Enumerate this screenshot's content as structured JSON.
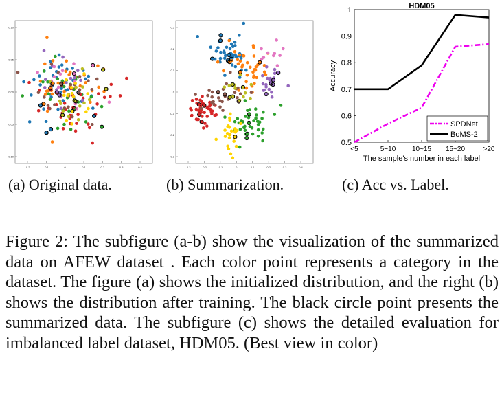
{
  "figure": {
    "panels": [
      {
        "caption": "(a) Original data.",
        "x_ticks": [
          "-0.2",
          "-0.1",
          "0",
          "0.1",
          "0.2",
          "0.3",
          "0.4"
        ],
        "y_ticks": [
          "0.10",
          "0.05",
          "0.00",
          "-0.05",
          "-0.10"
        ]
      },
      {
        "caption": "(b) Summarization.",
        "x_ticks": [
          "-0.3",
          "-0.2",
          "-0.1",
          "0",
          "0.1",
          "0.2",
          "0.3",
          "0.4"
        ],
        "y_ticks": [
          "0.3",
          "0.2",
          "0.1",
          "0",
          "-0.1",
          "-0.2",
          "-0.3"
        ]
      },
      {
        "caption": "(c) Acc vs. Label."
      }
    ],
    "category_colors": [
      "#1f77b4",
      "#ff7f0e",
      "#2ca02c",
      "#d62728",
      "#9467bd",
      "#8c564b",
      "#e377c2",
      "#bcbd22",
      "#ffd400"
    ],
    "caption_text": "Figure 2: The subfigure (a-b) show the visualization of the summarized data on AFEW dataset . Each color point represents a category in the dataset. The figure (a) shows the initialized distribution, and the right (b) shows the distribution after training. The black circle point presents the summarized data. The subfigure (c) shows the detailed evaluation for imbalanced label dataset, HDM05. (Best view in color)"
  },
  "chart_data": {
    "type": "line",
    "title": "HDM05",
    "xlabel": "The sample's number in each label",
    "ylabel": "Accuracy",
    "categories": [
      "<5",
      "5~10",
      "10~15",
      "15~20",
      ">20"
    ],
    "ylim": [
      0.5,
      1.0
    ],
    "yticks": [
      "0.5",
      "0.6",
      "0.7",
      "0.8",
      "0.9",
      "1"
    ],
    "legend_position": "bottom-right",
    "series": [
      {
        "name": "SPDNet",
        "values": [
          0.5,
          0.57,
          0.63,
          0.86,
          0.87
        ],
        "color": "#ee00ee",
        "style": "dash-dot"
      },
      {
        "name": "BoMS-2",
        "values": [
          0.7,
          0.7,
          0.79,
          0.98,
          0.97
        ],
        "color": "#000000",
        "style": "solid"
      }
    ]
  }
}
